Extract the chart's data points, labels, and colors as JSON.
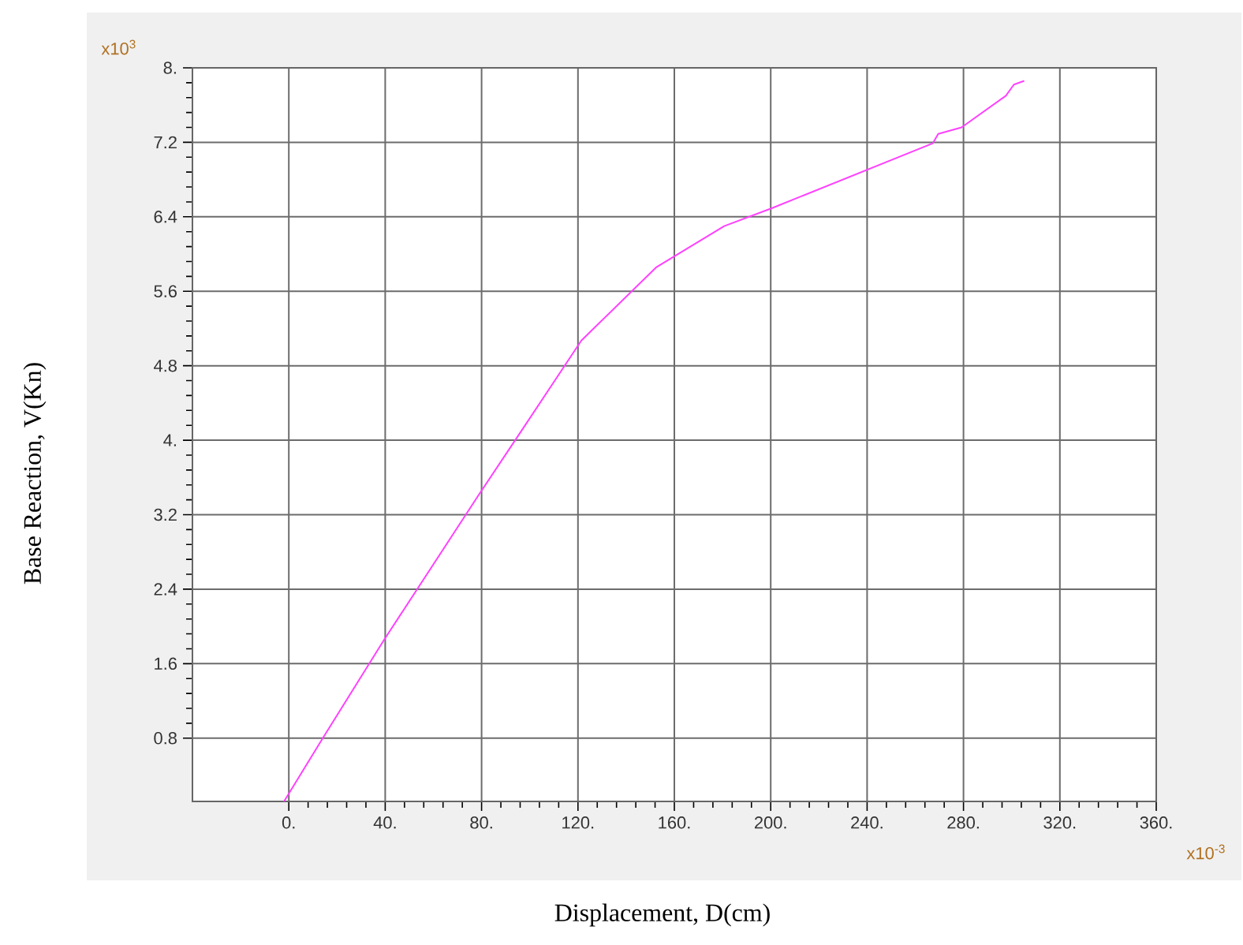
{
  "chart_data": {
    "type": "line",
    "xlabel": "Displacement, D(cm)",
    "ylabel": "Base Reaction, V(Kn)",
    "annotations": [
      "x10$^{3}$",
      "x10$^{-3}$"
    ],
    "series": [
      {
        "color": "#ff40ff",
        "x": [
          -2,
          14.1,
          39.4,
          79,
          96,
          121.4,
          152.6,
          180.7,
          200.2,
          267.3,
          269.5,
          279.2,
          297.6,
          300.9,
          305.2
        ],
        "values": [
          0.12,
          0.8,
          1.85,
          3.42,
          4.08,
          5.07,
          5.86,
          6.3,
          6.49,
          7.19,
          7.29,
          7.36,
          7.7,
          7.82,
          7.86
        ]
      }
    ],
    "xlim": [
      -40,
      360
    ],
    "ylim": [
      0.12,
      8
    ],
    "xticks": [
      {
        "value": 0,
        "label": "0."
      },
      {
        "value": 40,
        "label": "40."
      },
      {
        "value": 80,
        "label": "80."
      },
      {
        "value": 120,
        "label": "120."
      },
      {
        "value": 160,
        "label": "160."
      },
      {
        "value": 200,
        "label": "200."
      },
      {
        "value": 240,
        "label": "240."
      },
      {
        "value": 280,
        "label": "280."
      },
      {
        "value": 320,
        "label": "320."
      },
      {
        "value": 360,
        "label": "360."
      }
    ],
    "yticks": [
      0.8,
      1.6,
      2.4,
      3.2,
      {
        "value": 4,
        "label": "4."
      },
      4.8,
      5.6,
      6.4,
      7.2,
      {
        "value": 8,
        "label": "8."
      }
    ],
    "grid": true,
    "marker": "none",
    "line_style": "solid"
  }
}
